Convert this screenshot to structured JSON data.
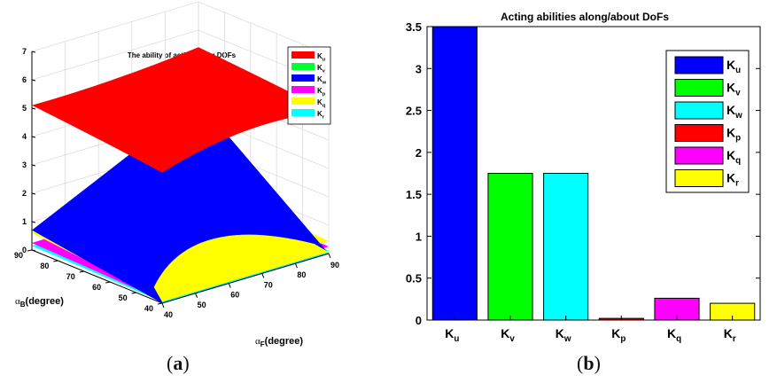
{
  "figure": {
    "left_caption": {
      "open": "(",
      "letter": "a",
      "close": ")"
    },
    "right_caption": {
      "open": "(",
      "letter": "b",
      "close": ")"
    }
  },
  "chart_data": [
    {
      "type": "surface3d",
      "title": "The ability of acting along DOFs",
      "xlabel_main": "α",
      "xlabel_sub": "F",
      "xlabel_unit": "(degree)",
      "ylabel_main": "α",
      "ylabel_sub": "B",
      "ylabel_unit": "(degree)",
      "x_ticks": [
        "40",
        "50",
        "60",
        "70",
        "80",
        "90"
      ],
      "y_ticks": [
        "40",
        "50",
        "60",
        "70",
        "80",
        "90"
      ],
      "z_ticks": [
        "0",
        "1",
        "2",
        "3",
        "4",
        "5",
        "6",
        "7"
      ],
      "zlim": [
        0,
        7
      ],
      "legend_position": "top-right",
      "legend": [
        {
          "main": "K",
          "sub": "u",
          "color": "#ff0000"
        },
        {
          "main": "K",
          "sub": "v",
          "color": "#00ff33"
        },
        {
          "main": "K",
          "sub": "w",
          "color": "#0000ff"
        },
        {
          "main": "K",
          "sub": "p",
          "color": "#ff00ff"
        },
        {
          "main": "K",
          "sub": "q",
          "color": "#ffff00"
        },
        {
          "main": "K",
          "sub": "r",
          "color": "#00ffff"
        }
      ],
      "surfaces": [
        {
          "series": "K_u",
          "color": "#ff0000",
          "approx_range": [
            4.5,
            5.4
          ]
        },
        {
          "series": "K_w",
          "color": "#0000ff",
          "approx_range": [
            0.0,
            3.5
          ]
        },
        {
          "series": "K_q",
          "color": "#ffff00",
          "approx_range": [
            0.0,
            0.6
          ]
        },
        {
          "series": "K_p",
          "color": "#ff00ff",
          "approx_range": [
            0.0,
            0.3
          ]
        },
        {
          "series": "K_r",
          "color": "#00ffff",
          "approx_range": [
            0.0,
            0.2
          ]
        }
      ]
    },
    {
      "type": "bar",
      "title": "Acting abilities along/about DoFs",
      "categories": [
        {
          "main": "K",
          "sub": "u"
        },
        {
          "main": "K",
          "sub": "v"
        },
        {
          "main": "K",
          "sub": "w"
        },
        {
          "main": "K",
          "sub": "p"
        },
        {
          "main": "K",
          "sub": "q"
        },
        {
          "main": "K",
          "sub": "r"
        }
      ],
      "values": [
        3.5,
        1.75,
        1.75,
        0.02,
        0.26,
        0.2
      ],
      "colors": [
        "#0000ff",
        "#00ff00",
        "#00ffff",
        "#ff0000",
        "#ff00ff",
        "#ffff00"
      ],
      "ylim": [
        0,
        3.5
      ],
      "y_ticks": [
        "0",
        "0.5",
        "1",
        "1.5",
        "2",
        "2.5",
        "3",
        "3.5"
      ],
      "legend_position": "top-right",
      "legend": [
        {
          "main": "K",
          "sub": "u",
          "color": "#0000ff"
        },
        {
          "main": "K",
          "sub": "v",
          "color": "#00ff00"
        },
        {
          "main": "K",
          "sub": "w",
          "color": "#00ffff"
        },
        {
          "main": "K",
          "sub": "p",
          "color": "#ff0000"
        },
        {
          "main": "K",
          "sub": "q",
          "color": "#ff00ff"
        },
        {
          "main": "K",
          "sub": "r",
          "color": "#ffff00"
        }
      ]
    }
  ]
}
